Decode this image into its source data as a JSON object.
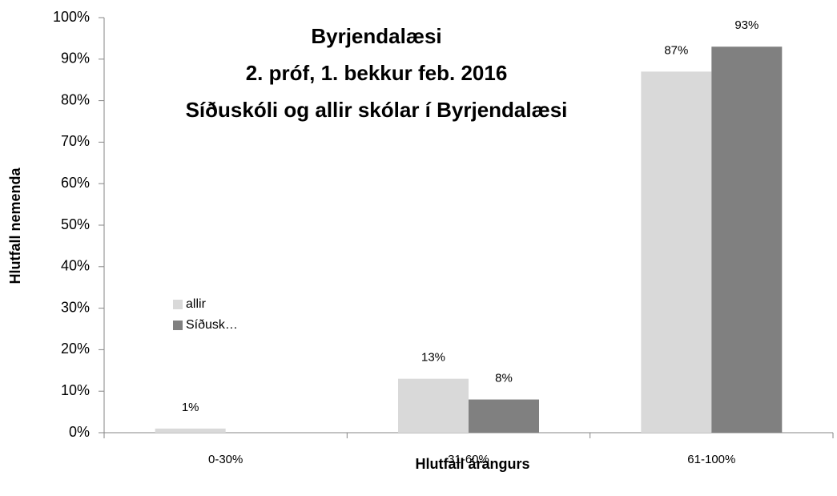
{
  "chart_data": {
    "type": "bar",
    "title": [
      "Byrjendalæsi",
      "2. próf, 1. bekkur feb. 2016",
      "Síðuskóli og allir skólar í Byrjendalæsi"
    ],
    "x_label": "Hlutfall árangurs",
    "y_label": "Hlutfall nemenda",
    "categories": [
      "0-30%",
      "31-60%",
      "61-100%"
    ],
    "series": [
      {
        "name": "allir",
        "color": "#d9d9d9",
        "values": [
          1,
          13,
          87
        ],
        "value_labels": [
          "1%",
          "13%",
          "87%"
        ]
      },
      {
        "name": "Síðusk…",
        "color": "#808080",
        "values": [
          0,
          8,
          93
        ],
        "value_labels": [
          null,
          "8%",
          "93%"
        ]
      }
    ],
    "ylim": [
      0,
      100
    ],
    "yticks": [
      {
        "value": 0,
        "label": "0%"
      },
      {
        "value": 10,
        "label": "10%"
      },
      {
        "value": 20,
        "label": "20%"
      },
      {
        "value": 30,
        "label": "30%"
      },
      {
        "value": 40,
        "label": "40%"
      },
      {
        "value": 50,
        "label": "50%"
      },
      {
        "value": 60,
        "label": "60%"
      },
      {
        "value": 70,
        "label": "70%"
      },
      {
        "value": 80,
        "label": "80%"
      },
      {
        "value": 90,
        "label": "90%"
      },
      {
        "value": 100,
        "label": "100%"
      }
    ]
  }
}
